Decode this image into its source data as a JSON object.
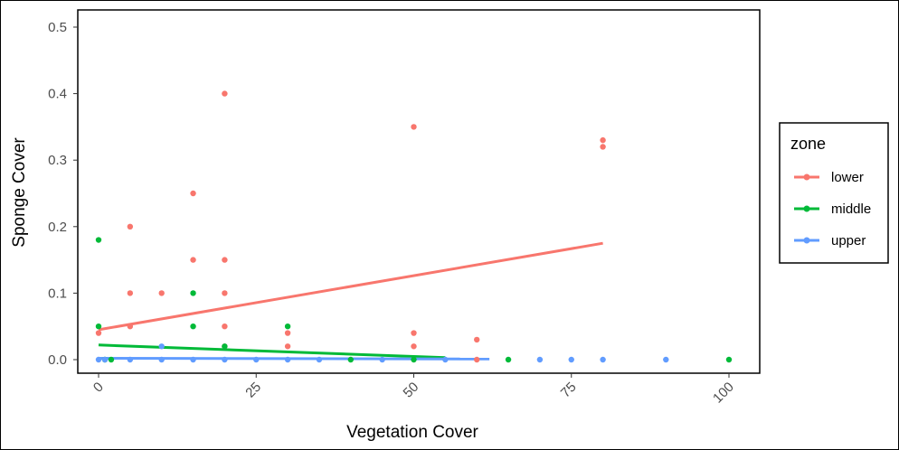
{
  "chart_data": {
    "type": "scatter",
    "title": "",
    "xlabel": "Vegetation Cover",
    "ylabel": "Sponge Cover",
    "xlim": [
      -1,
      105
    ],
    "ylim": [
      -0.02,
      0.525
    ],
    "x_ticks": [
      0,
      25,
      50,
      75,
      100
    ],
    "x_tick_labels": [
      "0",
      "25",
      "50",
      "75",
      "100"
    ],
    "y_ticks": [
      0.0,
      0.1,
      0.2,
      0.3,
      0.4,
      0.5
    ],
    "y_tick_labels": [
      "0.0",
      "0.1",
      "0.2",
      "0.3",
      "0.4",
      "0.5"
    ],
    "grid": false,
    "legend": {
      "title": "zone",
      "placement": "right",
      "entries": [
        "lower",
        "middle",
        "upper"
      ]
    },
    "series": [
      {
        "name": "lower",
        "color": "#F8766D",
        "points": [
          [
            0,
            0.04
          ],
          [
            5,
            0.2
          ],
          [
            5,
            0.1
          ],
          [
            5,
            0.05
          ],
          [
            10,
            0.1
          ],
          [
            15,
            0.25
          ],
          [
            15,
            0.15
          ],
          [
            20,
            0.4
          ],
          [
            20,
            0.15
          ],
          [
            20,
            0.1
          ],
          [
            20,
            0.05
          ],
          [
            20,
            0.02
          ],
          [
            30,
            0.04
          ],
          [
            30,
            0.02
          ],
          [
            50,
            0.35
          ],
          [
            50,
            0.04
          ],
          [
            50,
            0.02
          ],
          [
            60,
            0.03
          ],
          [
            60,
            0.0
          ],
          [
            80,
            0.33
          ],
          [
            80,
            0.32
          ]
        ],
        "trend": [
          [
            0,
            0.045
          ],
          [
            80,
            0.175
          ]
        ]
      },
      {
        "name": "middle",
        "color": "#00BA38",
        "points": [
          [
            0,
            0.18
          ],
          [
            0,
            0.05
          ],
          [
            1,
            0.0
          ],
          [
            2,
            0.0
          ],
          [
            15,
            0.1
          ],
          [
            15,
            0.05
          ],
          [
            20,
            0.02
          ],
          [
            30,
            0.05
          ],
          [
            40,
            0.0
          ],
          [
            50,
            0.0
          ],
          [
            65,
            0.0
          ],
          [
            100,
            0.0
          ]
        ],
        "trend": [
          [
            0,
            0.022
          ],
          [
            55,
            0.003
          ]
        ]
      },
      {
        "name": "upper",
        "color": "#619CFF",
        "points": [
          [
            0,
            0.0
          ],
          [
            1,
            0.0
          ],
          [
            5,
            0.0
          ],
          [
            10,
            0.02
          ],
          [
            10,
            0.0
          ],
          [
            15,
            0.0
          ],
          [
            20,
            0.0
          ],
          [
            25,
            0.0
          ],
          [
            30,
            0.0
          ],
          [
            35,
            0.0
          ],
          [
            45,
            0.0
          ],
          [
            55,
            0.0
          ],
          [
            70,
            0.0
          ],
          [
            75,
            0.0
          ],
          [
            80,
            0.0
          ],
          [
            90,
            0.0
          ]
        ],
        "trend": [
          [
            0,
            0.002
          ],
          [
            62,
            0.001
          ]
        ]
      }
    ]
  }
}
